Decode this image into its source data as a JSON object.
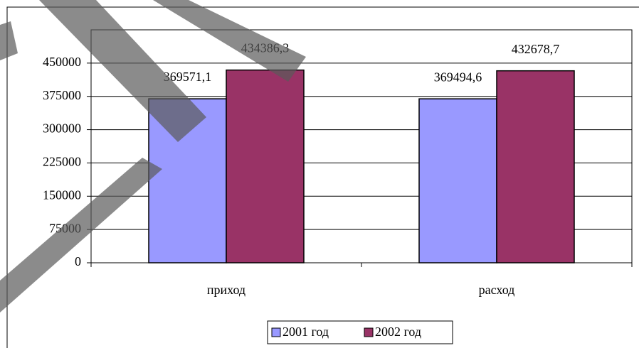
{
  "chart_data": {
    "type": "bar",
    "categories": [
      "приход",
      "расход"
    ],
    "series": [
      {
        "name": "2001 год",
        "color": "#9999ff",
        "values": [
          369571.1,
          369494.6
        ],
        "value_labels": [
          "369571,1",
          "369494,6"
        ]
      },
      {
        "name": "2002 год",
        "color": "#993366",
        "values": [
          434386.3,
          432678.7
        ],
        "value_labels": [
          "434386,3",
          "432678,7"
        ]
      }
    ],
    "ylim": [
      0,
      525000
    ],
    "yticks": [
      0,
      75000,
      150000,
      225000,
      300000,
      375000,
      450000
    ],
    "grid": true,
    "legend": "bottom"
  }
}
